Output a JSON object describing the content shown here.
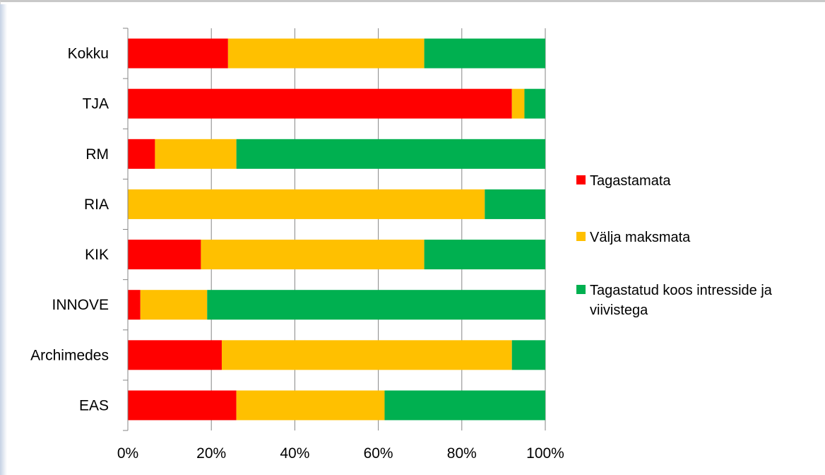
{
  "chart_data": {
    "type": "bar",
    "orientation": "horizontal",
    "stacked": "percent",
    "categories": [
      "Kokku",
      "TJA",
      "RM",
      "RIA",
      "KIK",
      "INNOVE",
      "Archimedes",
      "EAS"
    ],
    "series": [
      {
        "name": "Tagastamata",
        "color": "#ff0000",
        "values": [
          24,
          92,
          6.5,
          0,
          17.5,
          3,
          22.5,
          26
        ]
      },
      {
        "name": "Välja maksmata",
        "color": "#ffc000",
        "values": [
          47,
          3,
          19.5,
          85.5,
          53.5,
          16,
          69.5,
          35.5
        ]
      },
      {
        "name": "Tagastatud koos intresside ja viivistega",
        "color": "#00b050",
        "values": [
          29,
          5,
          74,
          14.5,
          29,
          81,
          8,
          38.5
        ]
      }
    ],
    "xlim": [
      0,
      100
    ],
    "x_ticks": [
      "0%",
      "20%",
      "40%",
      "60%",
      "80%",
      "100%"
    ],
    "grid": true,
    "legend_position": "right"
  }
}
